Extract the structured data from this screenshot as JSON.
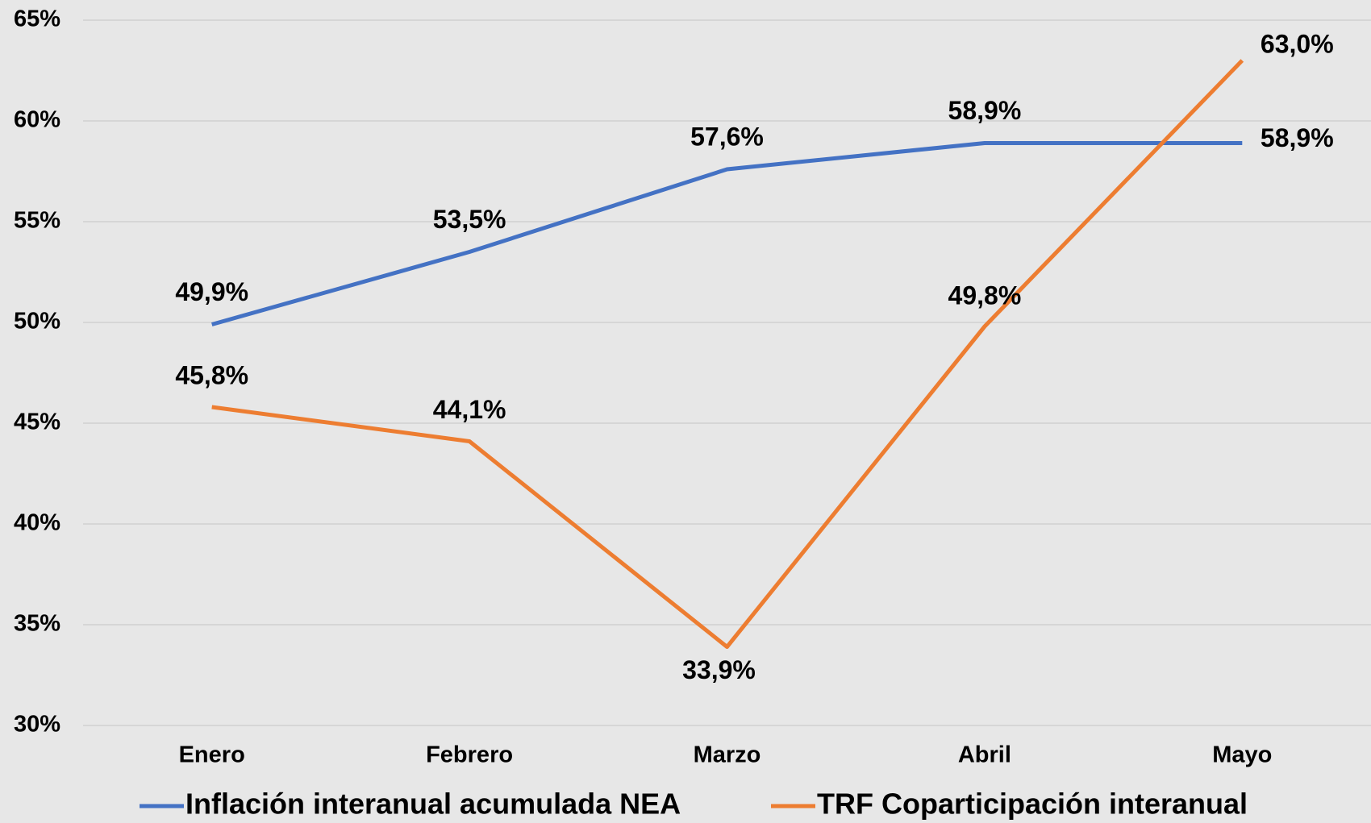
{
  "chart_data": {
    "type": "line",
    "categories": [
      "Enero",
      "Febrero",
      "Marzo",
      "Abril",
      "Mayo"
    ],
    "series": [
      {
        "name": "Inflación interanual acumulada NEA",
        "color": "#4472c4",
        "values": [
          49.9,
          53.5,
          57.6,
          58.9,
          58.9
        ],
        "value_labels": [
          "49,9%",
          "53,5%",
          "57,6%",
          "58,9%",
          "58,9%"
        ]
      },
      {
        "name": "TRF Coparticipación interanual",
        "color": "#ed7d31",
        "values": [
          45.8,
          44.1,
          33.9,
          49.8,
          63.0
        ],
        "value_labels": [
          "45,8%",
          "44,1%",
          "33,9%",
          "49,8%",
          "63,0%"
        ]
      }
    ],
    "ylim": [
      30,
      65
    ],
    "yticks": [
      {
        "value": 30,
        "label": "30%"
      },
      {
        "value": 35,
        "label": "35%"
      },
      {
        "value": 40,
        "label": "40%"
      },
      {
        "value": 45,
        "label": "45%"
      },
      {
        "value": 50,
        "label": "50%"
      },
      {
        "value": 55,
        "label": "55%"
      },
      {
        "value": 60,
        "label": "60%"
      },
      {
        "value": 65,
        "label": "65%"
      }
    ],
    "grid": true,
    "legend": "bottom"
  }
}
